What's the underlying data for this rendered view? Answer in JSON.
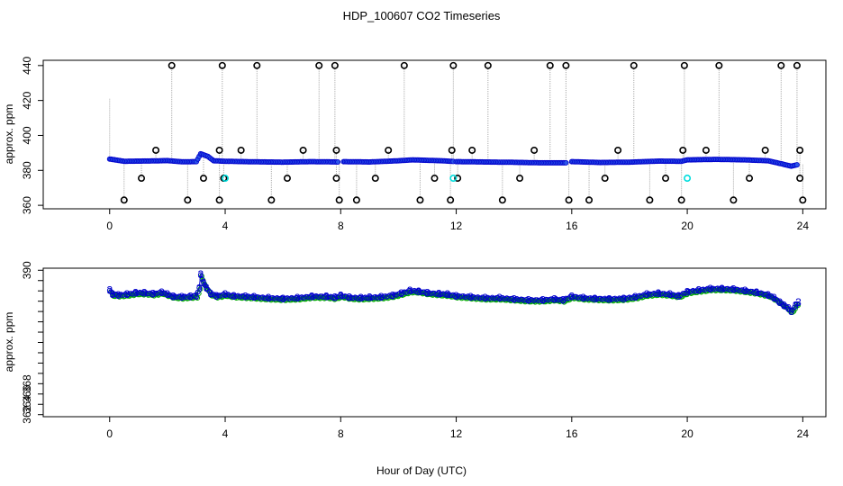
{
  "title": "HDP_100607  CO2 Timeseries",
  "xlabel": "Hour of Day (UTC)",
  "colors": {
    "outline": "#000000",
    "series_main": "#0000cc",
    "series_fill": "#00aa00",
    "cyan_marker": "#00dddd",
    "spike_lines": "#aaaaaa"
  },
  "chart_data": [
    {
      "type": "scatter",
      "ylabel": "approx. ppm",
      "xlim": [
        -2.3,
        24.8
      ],
      "ylim": [
        358,
        443
      ],
      "xticks": [
        0,
        4,
        8,
        12,
        16,
        20,
        24
      ],
      "yticks": [
        360,
        380,
        400,
        420,
        440
      ],
      "base_series": [
        [
          0.0,
          386.5
        ],
        [
          0.5,
          385.2
        ],
        [
          1.0,
          385.3
        ],
        [
          1.5,
          385.4
        ],
        [
          2.0,
          385.6
        ],
        [
          2.5,
          384.9
        ],
        [
          3.0,
          385.0
        ],
        [
          3.15,
          389.5
        ],
        [
          3.4,
          388.0
        ],
        [
          3.6,
          385.5
        ],
        [
          4.0,
          385.2
        ],
        [
          5.0,
          384.9
        ],
        [
          6.0,
          384.7
        ],
        [
          7.0,
          385.0
        ],
        [
          7.9,
          384.8
        ],
        [
          8.1,
          385.0
        ],
        [
          9.0,
          384.8
        ],
        [
          10.0,
          385.5
        ],
        [
          10.5,
          386.0
        ],
        [
          11.5,
          385.5
        ],
        [
          12.0,
          385.0
        ],
        [
          13.0,
          384.8
        ],
        [
          14.0,
          384.6
        ],
        [
          15.0,
          384.3
        ],
        [
          15.8,
          384.3
        ],
        [
          16.0,
          385.0
        ],
        [
          17.0,
          384.5
        ],
        [
          18.0,
          384.7
        ],
        [
          19.0,
          385.3
        ],
        [
          19.8,
          385.2
        ],
        [
          20.0,
          386.0
        ],
        [
          21.0,
          386.3
        ],
        [
          22.0,
          386.0
        ],
        [
          22.8,
          385.5
        ],
        [
          23.3,
          383.6
        ],
        [
          23.6,
          382.4
        ],
        [
          23.85,
          383.4
        ]
      ],
      "high_outliers": [
        {
          "x": 0.0,
          "y": 421
        },
        {
          "x": 2.15,
          "y": 440
        },
        {
          "x": 3.9,
          "y": 440
        },
        {
          "x": 5.1,
          "y": 440
        },
        {
          "x": 7.25,
          "y": 440
        },
        {
          "x": 7.8,
          "y": 440
        },
        {
          "x": 10.2,
          "y": 440
        },
        {
          "x": 11.9,
          "y": 440
        },
        {
          "x": 13.1,
          "y": 440
        },
        {
          "x": 15.25,
          "y": 440
        },
        {
          "x": 15.8,
          "y": 440
        },
        {
          "x": 18.15,
          "y": 440
        },
        {
          "x": 19.9,
          "y": 440
        },
        {
          "x": 21.1,
          "y": 440
        },
        {
          "x": 23.25,
          "y": 440
        },
        {
          "x": 23.8,
          "y": 440
        }
      ],
      "mid_outliers": [
        {
          "x": 1.6,
          "y": 391.5
        },
        {
          "x": 3.8,
          "y": 391.5
        },
        {
          "x": 4.55,
          "y": 391.5
        },
        {
          "x": 6.7,
          "y": 391.5
        },
        {
          "x": 7.85,
          "y": 391.5
        },
        {
          "x": 9.65,
          "y": 391.5
        },
        {
          "x": 11.85,
          "y": 391.5
        },
        {
          "x": 12.55,
          "y": 391.5
        },
        {
          "x": 14.7,
          "y": 391.5
        },
        {
          "x": 17.6,
          "y": 391.5
        },
        {
          "x": 19.85,
          "y": 391.5
        },
        {
          "x": 20.65,
          "y": 391.5
        },
        {
          "x": 22.7,
          "y": 391.5
        },
        {
          "x": 23.9,
          "y": 391.5
        }
      ],
      "low_outliers": [
        {
          "x": 0.5,
          "y": 363
        },
        {
          "x": 1.1,
          "y": 375.5
        },
        {
          "x": 2.7,
          "y": 363
        },
        {
          "x": 3.25,
          "y": 375.5
        },
        {
          "x": 3.8,
          "y": 363
        },
        {
          "x": 3.95,
          "y": 375.5
        },
        {
          "x": 5.6,
          "y": 363
        },
        {
          "x": 6.15,
          "y": 375.5
        },
        {
          "x": 7.85,
          "y": 375.5
        },
        {
          "x": 7.95,
          "y": 363
        },
        {
          "x": 8.55,
          "y": 363
        },
        {
          "x": 9.2,
          "y": 375.5
        },
        {
          "x": 10.75,
          "y": 363
        },
        {
          "x": 11.25,
          "y": 375.5
        },
        {
          "x": 11.8,
          "y": 363
        },
        {
          "x": 12.05,
          "y": 375.5
        },
        {
          "x": 13.6,
          "y": 363
        },
        {
          "x": 14.2,
          "y": 375.5
        },
        {
          "x": 15.9,
          "y": 363
        },
        {
          "x": 16.6,
          "y": 363
        },
        {
          "x": 17.15,
          "y": 375.5
        },
        {
          "x": 18.7,
          "y": 363
        },
        {
          "x": 19.25,
          "y": 375.5
        },
        {
          "x": 19.8,
          "y": 363
        },
        {
          "x": 21.6,
          "y": 363
        },
        {
          "x": 22.15,
          "y": 375.5
        },
        {
          "x": 23.9,
          "y": 375.5
        },
        {
          "x": 24.0,
          "y": 363
        }
      ],
      "cyan_points": [
        {
          "x": 4.0,
          "y": 375.5
        },
        {
          "x": 11.9,
          "y": 375.5
        },
        {
          "x": 20.0,
          "y": 375.5
        }
      ]
    },
    {
      "type": "line",
      "ylabel": "approx. ppm",
      "xlim": [
        -2.3,
        24.8
      ],
      "ylim": [
        361.6,
        390.4
      ],
      "xticks": [
        0,
        4,
        8,
        12,
        16,
        20,
        24
      ],
      "yticks": [
        362,
        364,
        366,
        368,
        370,
        372,
        374,
        376,
        378,
        380,
        382,
        384,
        386,
        388,
        390
      ],
      "ytick_labels_shown": [
        362,
        364,
        366,
        368,
        390
      ],
      "label_marker": "3",
      "series": [
        [
          0.0,
          386.1
        ],
        [
          0.1,
          385.3
        ],
        [
          0.3,
          385.2
        ],
        [
          0.6,
          385.3
        ],
        [
          0.9,
          385.6
        ],
        [
          1.2,
          385.6
        ],
        [
          1.5,
          385.4
        ],
        [
          1.8,
          385.7
        ],
        [
          2.0,
          385.3
        ],
        [
          2.2,
          384.9
        ],
        [
          2.5,
          384.8
        ],
        [
          2.8,
          384.9
        ],
        [
          3.0,
          385.0
        ],
        [
          3.1,
          386.5
        ],
        [
          3.15,
          389.2
        ],
        [
          3.25,
          387.5
        ],
        [
          3.35,
          386.6
        ],
        [
          3.5,
          385.4
        ],
        [
          3.7,
          385.0
        ],
        [
          4.0,
          385.3
        ],
        [
          4.3,
          385.0
        ],
        [
          4.7,
          384.9
        ],
        [
          5.0,
          384.8
        ],
        [
          5.5,
          384.6
        ],
        [
          6.0,
          384.5
        ],
        [
          6.5,
          384.6
        ],
        [
          7.0,
          384.9
        ],
        [
          7.5,
          384.9
        ],
        [
          7.8,
          384.7
        ],
        [
          8.0,
          385.1
        ],
        [
          8.3,
          384.7
        ],
        [
          8.7,
          384.6
        ],
        [
          9.0,
          384.7
        ],
        [
          9.4,
          384.8
        ],
        [
          9.8,
          385.1
        ],
        [
          10.1,
          385.5
        ],
        [
          10.4,
          386.0
        ],
        [
          10.7,
          385.9
        ],
        [
          11.0,
          385.6
        ],
        [
          11.4,
          385.4
        ],
        [
          11.7,
          385.3
        ],
        [
          12.0,
          385.0
        ],
        [
          12.5,
          384.8
        ],
        [
          13.0,
          384.6
        ],
        [
          13.5,
          384.6
        ],
        [
          14.0,
          384.4
        ],
        [
          14.5,
          384.2
        ],
        [
          15.0,
          384.2
        ],
        [
          15.4,
          384.4
        ],
        [
          15.7,
          384.2
        ],
        [
          16.0,
          384.9
        ],
        [
          16.4,
          384.6
        ],
        [
          16.8,
          384.5
        ],
        [
          17.3,
          384.4
        ],
        [
          17.8,
          384.5
        ],
        [
          18.2,
          384.8
        ],
        [
          18.6,
          385.3
        ],
        [
          19.0,
          385.5
        ],
        [
          19.4,
          385.3
        ],
        [
          19.7,
          385.0
        ],
        [
          20.0,
          385.8
        ],
        [
          20.4,
          386.1
        ],
        [
          20.8,
          386.4
        ],
        [
          21.2,
          386.4
        ],
        [
          21.6,
          386.3
        ],
        [
          22.0,
          386.0
        ],
        [
          22.4,
          385.7
        ],
        [
          22.8,
          385.2
        ],
        [
          23.0,
          384.6
        ],
        [
          23.2,
          383.8
        ],
        [
          23.35,
          383.2
        ],
        [
          23.5,
          382.6
        ],
        [
          23.6,
          382.0
        ],
        [
          23.75,
          383.2
        ],
        [
          23.85,
          383.8
        ]
      ]
    }
  ]
}
